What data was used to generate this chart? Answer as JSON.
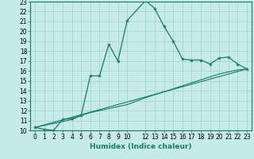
{
  "xlabel": "Humidex (Indice chaleur)",
  "background_color": "#c6eaea",
  "grid_color": "#a8d4d4",
  "line_color": "#1a7a6a",
  "xlim": [
    -0.5,
    23.5
  ],
  "ylim": [
    10,
    23
  ],
  "xticks": [
    0,
    1,
    2,
    3,
    4,
    5,
    6,
    7,
    8,
    9,
    10,
    12,
    13,
    14,
    15,
    16,
    17,
    18,
    19,
    20,
    21,
    22,
    23
  ],
  "yticks": [
    10,
    11,
    12,
    13,
    14,
    15,
    16,
    17,
    18,
    19,
    20,
    21,
    22,
    23
  ],
  "line1_x": [
    0,
    1,
    2,
    3,
    4,
    5,
    6,
    7,
    8,
    9,
    10,
    12,
    13,
    14,
    15,
    16,
    17,
    18,
    19,
    20,
    21,
    22,
    23
  ],
  "line1_y": [
    10.3,
    10.1,
    10.0,
    11.1,
    11.2,
    11.5,
    15.5,
    15.5,
    18.7,
    17.0,
    21.1,
    23.1,
    22.3,
    20.5,
    19.0,
    17.2,
    17.1,
    17.1,
    16.7,
    17.3,
    17.4,
    16.7,
    16.2
  ],
  "line2_x": [
    0,
    23
  ],
  "line2_y": [
    10.3,
    16.2
  ],
  "line3_x": [
    0,
    4,
    5,
    6,
    7,
    8,
    9,
    10,
    12,
    13,
    14,
    15,
    16,
    17,
    18,
    19,
    20,
    21,
    22,
    23
  ],
  "line3_y": [
    10.3,
    11.1,
    11.5,
    11.8,
    12.0,
    12.2,
    12.4,
    12.6,
    13.3,
    13.6,
    13.9,
    14.2,
    14.5,
    14.8,
    15.1,
    15.4,
    15.7,
    15.9,
    16.1,
    16.2
  ],
  "tick_fontsize": 5.5,
  "xlabel_fontsize": 6.5
}
